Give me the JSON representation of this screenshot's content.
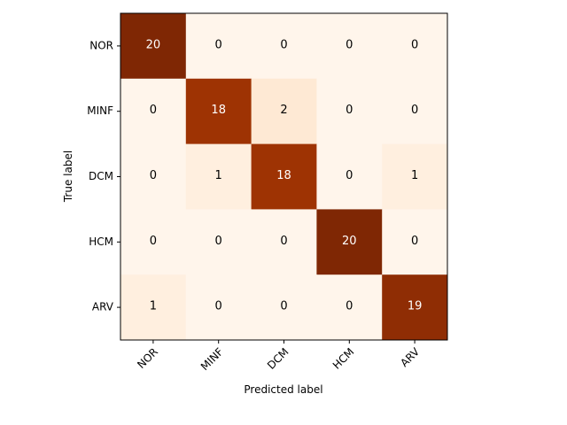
{
  "chart_data": {
    "type": "heatmap",
    "x_categories": [
      "NOR",
      "MINF",
      "DCM",
      "HCM",
      "ARV"
    ],
    "y_categories": [
      "NOR",
      "MINF",
      "DCM",
      "HCM",
      "ARV"
    ],
    "values": [
      [
        20,
        0,
        0,
        0,
        0
      ],
      [
        0,
        18,
        2,
        0,
        0
      ],
      [
        0,
        1,
        18,
        0,
        1
      ],
      [
        0,
        0,
        0,
        20,
        0
      ],
      [
        1,
        0,
        0,
        0,
        19
      ]
    ],
    "value_range": [
      0,
      20
    ],
    "colormap": "Oranges-Reds",
    "xlabel": "Predicted label",
    "ylabel": "True label",
    "x_tick_rotation": 45,
    "grid": false,
    "text_threshold": 10,
    "text_color_light": "#ffffff",
    "text_color_dark": "#000000"
  }
}
